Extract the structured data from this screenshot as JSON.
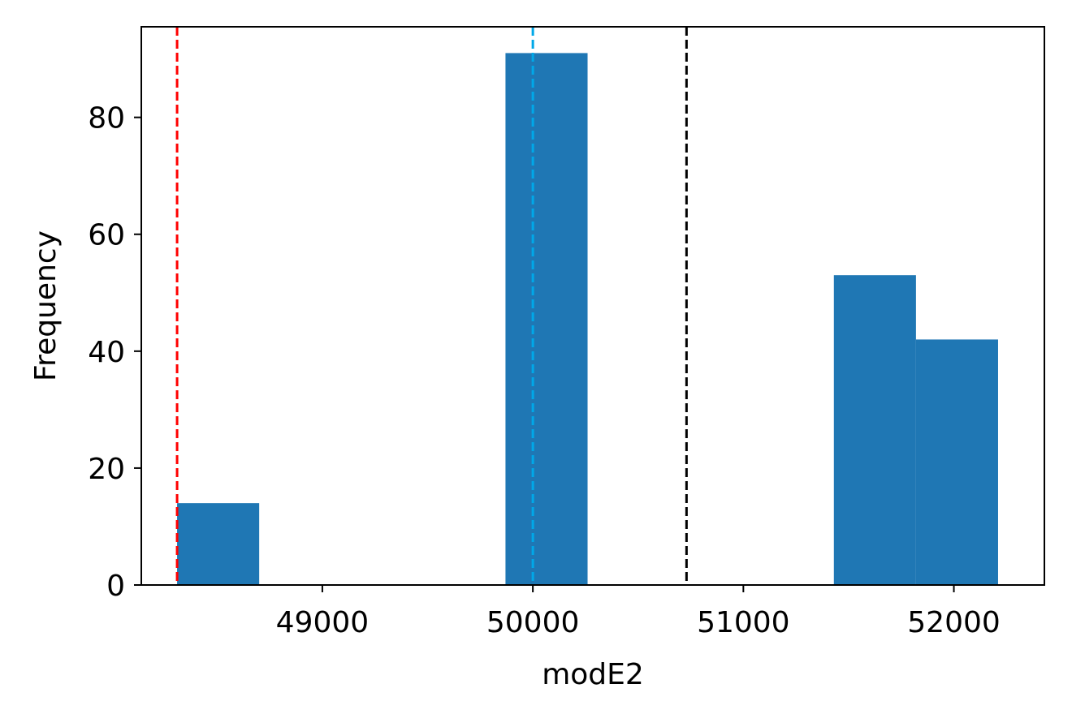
{
  "chart_data": {
    "type": "bar",
    "title": "",
    "xlabel": "modE2",
    "ylabel": "Frequency",
    "xlim": [
      48140,
      52430
    ],
    "ylim": [
      0,
      95.5
    ],
    "grid": false,
    "legend": "none",
    "bar_color": "#1f77b4",
    "bins": [
      {
        "x0": 48310,
        "x1": 48700,
        "count": 14
      },
      {
        "x0": 48700,
        "x1": 49090,
        "count": 0
      },
      {
        "x0": 49090,
        "x1": 49480,
        "count": 0
      },
      {
        "x0": 49480,
        "x1": 49870,
        "count": 0
      },
      {
        "x0": 49870,
        "x1": 50260,
        "count": 91
      },
      {
        "x0": 50260,
        "x1": 50650,
        "count": 0
      },
      {
        "x0": 50650,
        "x1": 51040,
        "count": 0
      },
      {
        "x0": 51040,
        "x1": 51430,
        "count": 0
      },
      {
        "x0": 51430,
        "x1": 51820,
        "count": 53
      },
      {
        "x0": 51820,
        "x1": 52210,
        "count": 42
      }
    ],
    "reference_lines": [
      {
        "x": 48310,
        "color": "#ff0000",
        "style": "dashed"
      },
      {
        "x": 50000,
        "color": "#00a8e8",
        "style": "dashed"
      },
      {
        "x": 50730,
        "color": "#000000",
        "style": "dashed"
      }
    ],
    "xticks": [
      {
        "value": 49000,
        "label": "49000"
      },
      {
        "value": 50000,
        "label": "50000"
      },
      {
        "value": 51000,
        "label": "51000"
      },
      {
        "value": 52000,
        "label": "52000"
      }
    ],
    "yticks": [
      {
        "value": 0,
        "label": "0"
      },
      {
        "value": 20,
        "label": "20"
      },
      {
        "value": 40,
        "label": "40"
      },
      {
        "value": 60,
        "label": "60"
      },
      {
        "value": 80,
        "label": "80"
      }
    ]
  }
}
